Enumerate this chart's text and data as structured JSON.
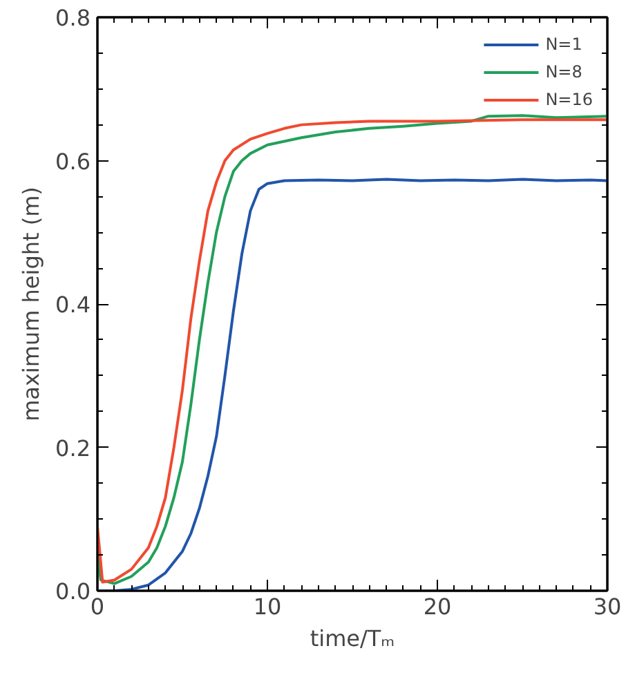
{
  "chart_data": {
    "type": "line",
    "xlabel": "time/Tₘ",
    "ylabel": "maximum height (m)",
    "xlim": [
      0,
      30
    ],
    "ylim": [
      0,
      0.8
    ],
    "xticks": [
      0,
      10,
      20,
      30
    ],
    "yticks": [
      {
        "value": 0,
        "label": "0.0"
      },
      {
        "value": 0.2,
        "label": "0.2"
      },
      {
        "value": 0.4,
        "label": "0.4"
      },
      {
        "value": 0.6,
        "label": "0.6"
      },
      {
        "value": 0.8,
        "label": "0.8"
      }
    ],
    "grid": false,
    "legend": "top right",
    "line_style": "solid",
    "series": [
      {
        "name": "N=1",
        "color": "#2255aa",
        "x": [
          0,
          1,
          2,
          3,
          4,
          5,
          5.5,
          6,
          6.5,
          7,
          7.5,
          8,
          8.5,
          9,
          9.5,
          10,
          11,
          13,
          15,
          17,
          19,
          21,
          23,
          25,
          27,
          29,
          30
        ],
        "values": [
          0.0,
          0.0,
          0.002,
          0.008,
          0.025,
          0.055,
          0.08,
          0.115,
          0.16,
          0.215,
          0.3,
          0.39,
          0.47,
          0.53,
          0.56,
          0.568,
          0.572,
          0.573,
          0.572,
          0.574,
          0.572,
          0.573,
          0.572,
          0.574,
          0.572,
          0.573,
          0.572
        ]
      },
      {
        "name": "N=8",
        "color": "#22a05a",
        "x": [
          0,
          0.2,
          1,
          2,
          3,
          3.5,
          4,
          4.5,
          5,
          5.5,
          6,
          6.5,
          7,
          7.5,
          8,
          8.5,
          9,
          10,
          12,
          14,
          16,
          18,
          20,
          22,
          23,
          25,
          27,
          30
        ],
        "values": [
          0.05,
          0.015,
          0.01,
          0.02,
          0.04,
          0.06,
          0.09,
          0.13,
          0.18,
          0.26,
          0.35,
          0.43,
          0.5,
          0.55,
          0.585,
          0.6,
          0.61,
          0.622,
          0.632,
          0.64,
          0.645,
          0.648,
          0.652,
          0.655,
          0.662,
          0.663,
          0.66,
          0.662
        ]
      },
      {
        "name": "N=16",
        "color": "#f04a30",
        "x": [
          0,
          0.3,
          1,
          2,
          3,
          3.5,
          4,
          4.5,
          5,
          5.5,
          6,
          6.5,
          7,
          7.5,
          8,
          9,
          10,
          11,
          12,
          14,
          16,
          20,
          25,
          30
        ],
        "values": [
          0.09,
          0.012,
          0.015,
          0.03,
          0.06,
          0.09,
          0.13,
          0.2,
          0.28,
          0.38,
          0.46,
          0.53,
          0.57,
          0.6,
          0.615,
          0.63,
          0.638,
          0.645,
          0.65,
          0.653,
          0.655,
          0.655,
          0.657,
          0.657
        ]
      }
    ]
  }
}
